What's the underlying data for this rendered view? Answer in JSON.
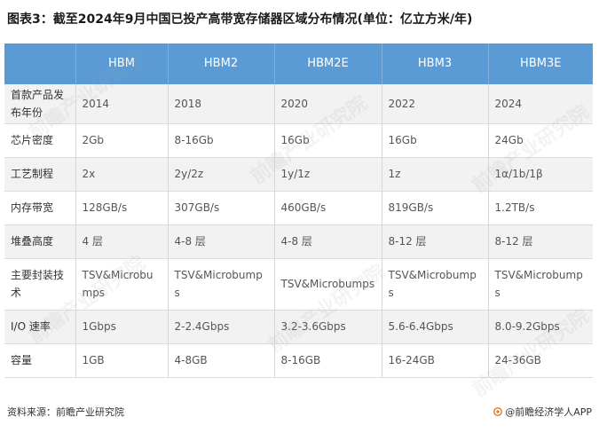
{
  "title": "图表3：截至2024年9月中国已投产高带宽存储器区域分布情况(单位：亿立方米/年)",
  "table": {
    "headers": [
      "",
      "HBM",
      "HBM2",
      "HBM2E",
      "HBM3",
      "HBM3E"
    ],
    "rows": [
      {
        "label": "首款产品发布年份",
        "cells": [
          "2014",
          "2018",
          "2020",
          "2022",
          "2024"
        ]
      },
      {
        "label": "芯片密度",
        "cells": [
          "2Gb",
          "8-16Gb",
          "16Gb",
          "16Gb",
          "24Gb"
        ]
      },
      {
        "label": "工艺制程",
        "cells": [
          "2x",
          "2y/2z",
          "1y/1z",
          "1z",
          "1α/1b/1β"
        ]
      },
      {
        "label": "内存带宽",
        "cells": [
          "128GB/s",
          "307GB/s",
          "460GB/s",
          "819GB/s",
          "1.2TB/s"
        ]
      },
      {
        "label": "堆叠高度",
        "cells": [
          "4 层",
          "4-8 层",
          "4-8 层",
          "8-12 层",
          "8-12 层"
        ]
      },
      {
        "label": "主要封装技术",
        "cells": [
          "TSV&Microbumps",
          "TSV&Microbumps",
          "TSV&Microbumps",
          "TSV&Microbumps",
          "TSV&Microbumps"
        ]
      },
      {
        "label": "I/O 速率",
        "cells": [
          "1Gbps",
          "2-2.4Gbps",
          "3.2-3.6Gbps",
          "5.6-6.4Gbps",
          "8.0-9.2Gbps"
        ]
      },
      {
        "label": "容量",
        "cells": [
          "1GB",
          "4-8GB",
          "8-16GB",
          "16-24GB",
          "24-36GB"
        ]
      }
    ]
  },
  "footer": {
    "source": "资料来源：前瞻产业研究院",
    "credit": "@前瞻经济学人APP"
  },
  "watermark": {
    "text": "前瞻产业研究院"
  },
  "colors": {
    "header_bg": "#5b9bd5",
    "header_text": "#ffffff",
    "row_alt_bg": "#f2f2f2"
  }
}
